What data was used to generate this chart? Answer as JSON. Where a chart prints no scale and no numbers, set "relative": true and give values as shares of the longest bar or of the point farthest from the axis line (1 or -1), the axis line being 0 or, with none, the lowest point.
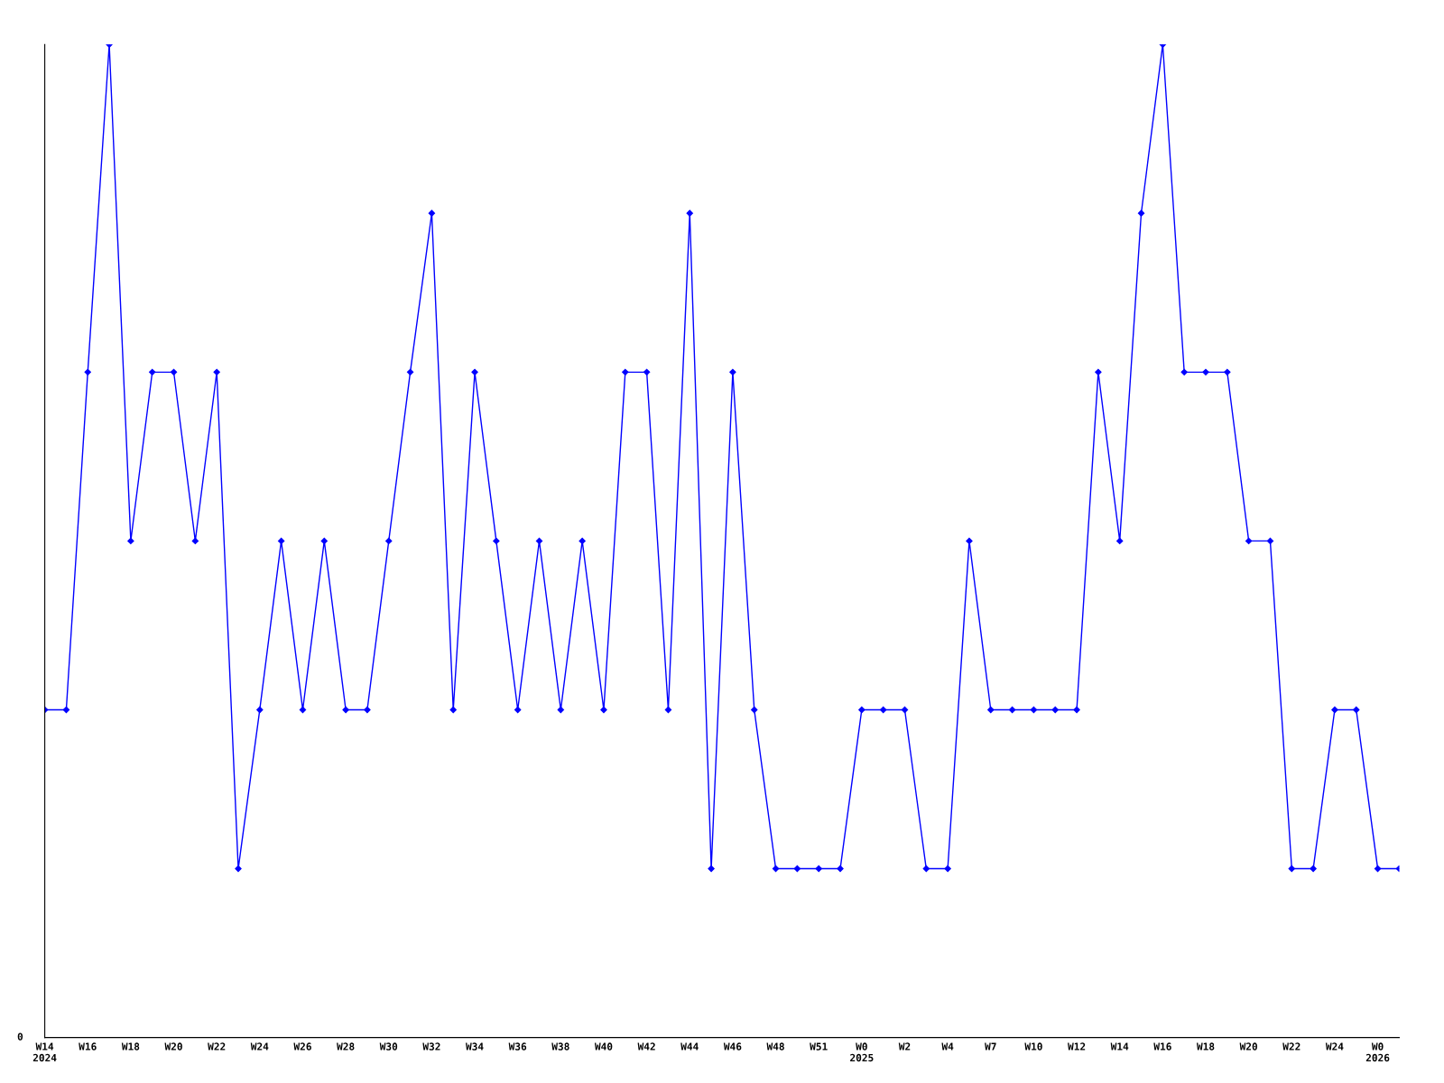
{
  "chart_data": {
    "type": "line",
    "relative": true,
    "marker": "diamond",
    "line_style": "solid",
    "grid": false,
    "legend": false,
    "categories": [
      "W14\n2024",
      null,
      "W16",
      null,
      "W18",
      null,
      "W20",
      null,
      "W22",
      null,
      "W24",
      null,
      "W26",
      null,
      "W28",
      null,
      "W30",
      null,
      "W32",
      null,
      "W34",
      null,
      "W36",
      null,
      "W38",
      null,
      "W40",
      null,
      "W42",
      null,
      "W44",
      null,
      "W46",
      null,
      "W48",
      null,
      "W51",
      null,
      "W0\n2025",
      null,
      "W2",
      null,
      "W4",
      null,
      "W7",
      null,
      "W10",
      null,
      "W12",
      null,
      "W14",
      null,
      "W16",
      null,
      "W18",
      null,
      "W20",
      null,
      "W22",
      null,
      "W24",
      null,
      "W0\n2026",
      null
    ],
    "series": [
      {
        "color": "#0000ff",
        "values": [
          0.33,
          0.33,
          0.67,
          1,
          0.5,
          0.67,
          0.67,
          0.5,
          0.67,
          0.17,
          0.33,
          0.5,
          0.33,
          0.5,
          0.33,
          0.33,
          0.5,
          0.67,
          0.83,
          0.33,
          0.67,
          0.5,
          0.33,
          0.5,
          0.33,
          0.5,
          0.33,
          0.67,
          0.67,
          0.33,
          0.83,
          0.17,
          0.67,
          0.33,
          0.17,
          0.17,
          0.17,
          0.17,
          0.33,
          0.33,
          0.33,
          0.17,
          0.17,
          0.5,
          0.33,
          0.33,
          0.33,
          0.33,
          0.33,
          0.67,
          0.5,
          0.83,
          1,
          0.67,
          0.67,
          0.67,
          0.5,
          0.5,
          0.17,
          0.17,
          0.33,
          0.33,
          0.17,
          0.17
        ]
      }
    ],
    "annotations": [
      "0"
    ]
  }
}
